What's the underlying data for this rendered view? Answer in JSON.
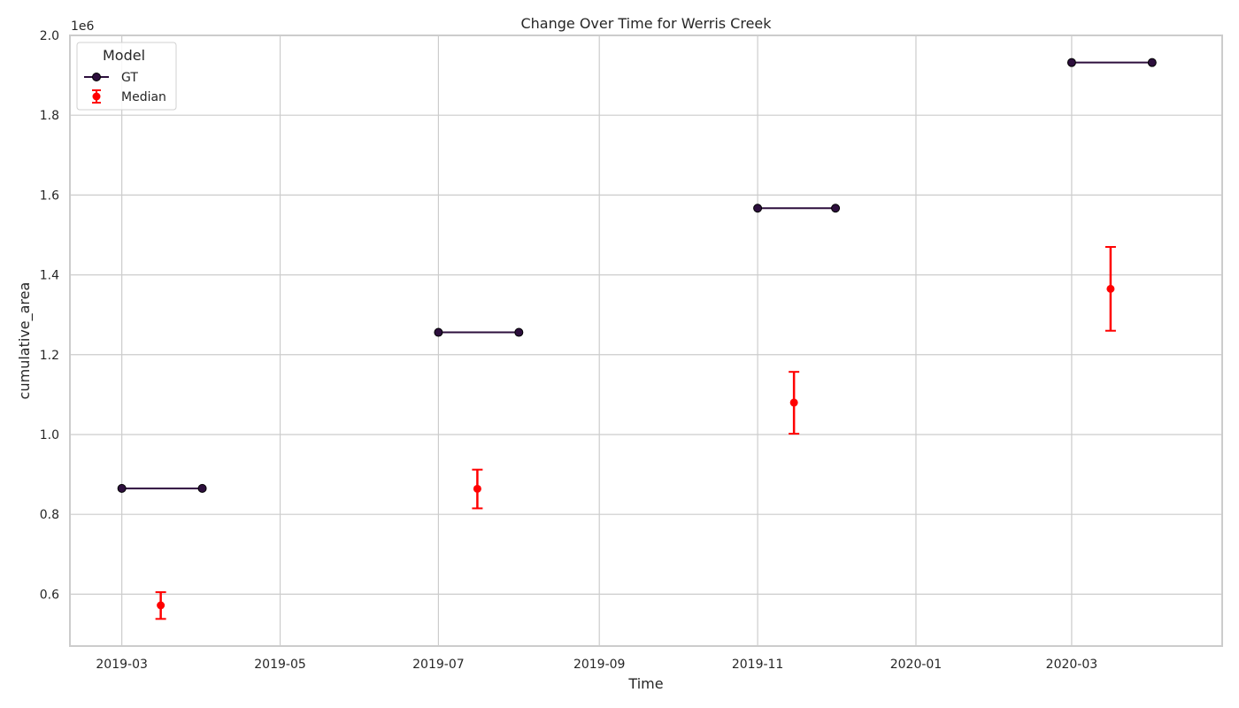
{
  "chart_data": {
    "type": "line",
    "title": "Change Over Time for Werris Creek",
    "xlabel": "Time",
    "ylabel": "cumulative_area",
    "y_multiplier_label": "1e6",
    "x_range": [
      "2019-02-09",
      "2020-04-28"
    ],
    "ylim": [
      0.47,
      2.0
    ],
    "x_ticks": [
      "2019-03-01",
      "2019-05-01",
      "2019-07-01",
      "2019-09-01",
      "2019-11-01",
      "2020-01-01",
      "2020-03-01"
    ],
    "x_tick_labels": [
      "2019-03",
      "2019-05",
      "2019-07",
      "2019-09",
      "2019-11",
      "2020-01",
      "2020-03"
    ],
    "y_ticks": [
      0.6,
      0.8,
      1.0,
      1.2,
      1.4,
      1.6,
      1.8,
      2.0
    ],
    "y_tick_labels": [
      "0.6",
      "0.8",
      "1.0",
      "1.2",
      "1.4",
      "1.6",
      "1.8",
      "2.0"
    ],
    "grid": true,
    "legend": {
      "title": "Model",
      "placement": "top-left",
      "entries": [
        "GT",
        "Median"
      ]
    },
    "series": [
      {
        "name": "GT",
        "kind": "line-segments",
        "color": "#2d0f3d",
        "segments": [
          [
            {
              "x": "2019-03-01",
              "y": 0.865
            },
            {
              "x": "2019-04-01",
              "y": 0.865
            }
          ],
          [
            {
              "x": "2019-07-01",
              "y": 1.256
            },
            {
              "x": "2019-08-01",
              "y": 1.256
            }
          ],
          [
            {
              "x": "2019-11-01",
              "y": 1.567
            },
            {
              "x": "2019-12-01",
              "y": 1.567
            }
          ],
          [
            {
              "x": "2020-03-01",
              "y": 1.932
            },
            {
              "x": "2020-04-01",
              "y": 1.932
            }
          ]
        ]
      },
      {
        "name": "Median",
        "kind": "errorbar",
        "color": "#ff0000",
        "points": [
          {
            "x": "2019-03-16",
            "y": 0.572,
            "low": 0.538,
            "high": 0.605
          },
          {
            "x": "2019-07-16",
            "y": 0.864,
            "low": 0.815,
            "high": 0.912
          },
          {
            "x": "2019-11-15",
            "y": 1.08,
            "low": 1.002,
            "high": 1.157
          },
          {
            "x": "2020-03-16",
            "y": 1.365,
            "low": 1.26,
            "high": 1.47
          }
        ]
      }
    ]
  }
}
